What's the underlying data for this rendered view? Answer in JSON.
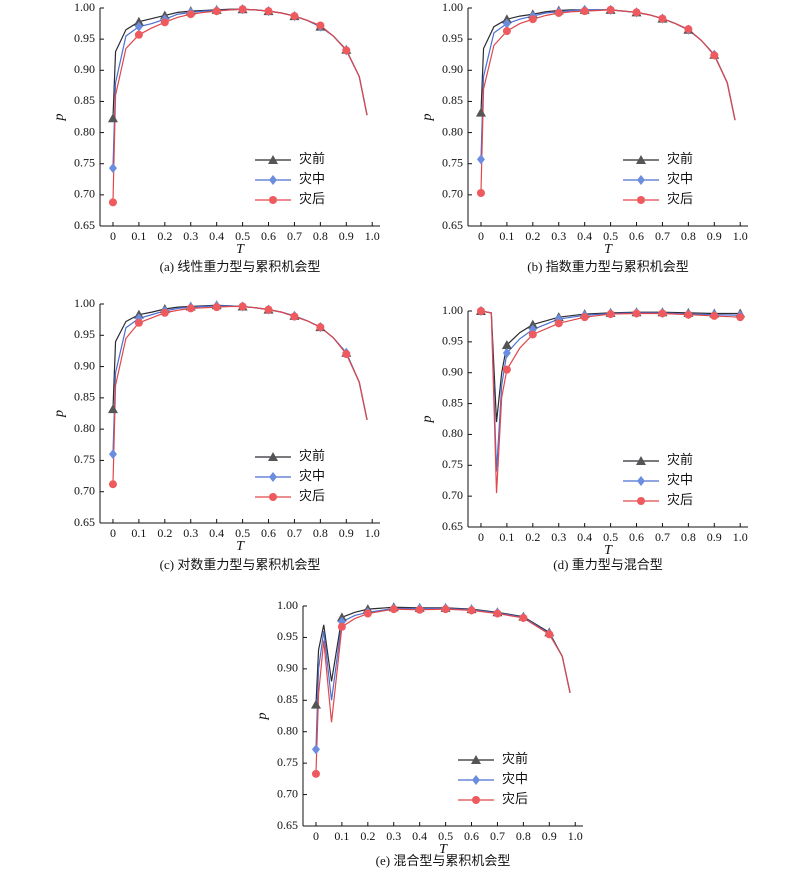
{
  "chart_data": [
    {
      "type": "line",
      "title": "(a) 线性重力型与累积机会型",
      "x_label": "T",
      "y_label": "p",
      "legend": "lower right",
      "xlim": [
        -0.05,
        1.03
      ],
      "ylim": [
        0.65,
        1.0
      ],
      "xticks": [
        0,
        0.1,
        0.2,
        0.3,
        0.4,
        0.5,
        0.6,
        0.7,
        0.8,
        0.9,
        {
          "value": 1,
          "label": "1.0"
        }
      ],
      "yticks": [
        0.65,
        {
          "value": 0.7,
          "label": "0.70"
        },
        0.75,
        {
          "value": 0.8,
          "label": "0.80"
        },
        0.85,
        {
          "value": 0.9,
          "label": "0.90"
        },
        0.95,
        {
          "value": 1,
          "label": "1.00"
        }
      ],
      "x": [
        0,
        0.01,
        0.05,
        0.1,
        0.15,
        0.2,
        0.25,
        0.3,
        0.35,
        0.4,
        0.45,
        0.5,
        0.55,
        0.6,
        0.65,
        0.7,
        0.75,
        0.8,
        0.85,
        0.9,
        0.95,
        0.98
      ],
      "series": [
        {
          "name": "灾前",
          "color": "#2b2b33",
          "values": [
            0.823,
            0.93,
            0.965,
            0.978,
            0.983,
            0.988,
            0.993,
            0.995,
            0.996,
            0.997,
            0.998,
            0.998,
            0.997,
            0.995,
            0.992,
            0.987,
            0.98,
            0.97,
            0.955,
            0.933,
            0.89,
            0.828
          ]
        },
        {
          "name": "灾中",
          "color": "#4a6fd0",
          "values": [
            0.743,
            0.88,
            0.955,
            0.97,
            0.975,
            0.982,
            0.99,
            0.993,
            0.995,
            0.996,
            0.997,
            0.998,
            0.997,
            0.995,
            0.992,
            0.987,
            0.98,
            0.97,
            0.955,
            0.932,
            0.89,
            0.828
          ]
        },
        {
          "name": "灾后",
          "color": "#e0474c",
          "values": [
            0.688,
            0.86,
            0.935,
            0.957,
            0.968,
            0.977,
            0.985,
            0.99,
            0.993,
            0.995,
            0.997,
            0.998,
            0.997,
            0.995,
            0.992,
            0.987,
            0.98,
            0.972,
            0.955,
            0.932,
            0.89,
            0.828
          ]
        }
      ]
    },
    {
      "type": "line",
      "title": "(b) 指数重力型与累积机会型",
      "x_label": "T",
      "y_label": "p",
      "legend": "lower right",
      "xlim": [
        -0.05,
        1.03
      ],
      "ylim": [
        0.65,
        1.0
      ],
      "xticks": [
        0,
        0.1,
        0.2,
        0.3,
        0.4,
        0.5,
        0.6,
        0.7,
        0.8,
        0.9,
        {
          "value": 1,
          "label": "1.0"
        }
      ],
      "yticks": [
        0.65,
        {
          "value": 0.7,
          "label": "0.70"
        },
        0.75,
        {
          "value": 0.8,
          "label": "0.80"
        },
        0.85,
        {
          "value": 0.9,
          "label": "0.90"
        },
        0.95,
        {
          "value": 1,
          "label": "1.00"
        }
      ],
      "x": [
        0,
        0.01,
        0.05,
        0.1,
        0.15,
        0.2,
        0.25,
        0.3,
        0.35,
        0.4,
        0.45,
        0.5,
        0.55,
        0.6,
        0.65,
        0.7,
        0.75,
        0.8,
        0.85,
        0.9,
        0.95,
        0.98
      ],
      "series": [
        {
          "name": "灾前",
          "color": "#2b2b33",
          "values": [
            0.832,
            0.935,
            0.97,
            0.982,
            0.987,
            0.99,
            0.994,
            0.996,
            0.997,
            0.997,
            0.997,
            0.997,
            0.995,
            0.993,
            0.989,
            0.983,
            0.975,
            0.965,
            0.948,
            0.925,
            0.88,
            0.82
          ]
        },
        {
          "name": "灾中",
          "color": "#4a6fd0",
          "values": [
            0.757,
            0.89,
            0.96,
            0.975,
            0.982,
            0.987,
            0.992,
            0.994,
            0.996,
            0.997,
            0.997,
            0.997,
            0.995,
            0.993,
            0.989,
            0.983,
            0.975,
            0.965,
            0.948,
            0.925,
            0.88,
            0.82
          ]
        },
        {
          "name": "灾后",
          "color": "#e0474c",
          "values": [
            0.703,
            0.87,
            0.94,
            0.963,
            0.975,
            0.982,
            0.988,
            0.992,
            0.994,
            0.995,
            0.996,
            0.997,
            0.995,
            0.993,
            0.989,
            0.983,
            0.975,
            0.966,
            0.948,
            0.924,
            0.88,
            0.82
          ]
        }
      ]
    },
    {
      "type": "line",
      "title": "(c) 对数重力型与累积机会型",
      "x_label": "T",
      "y_label": "p",
      "legend": "lower right",
      "xlim": [
        -0.05,
        1.03
      ],
      "ylim": [
        0.65,
        1.0
      ],
      "xticks": [
        0,
        0.1,
        0.2,
        0.3,
        0.4,
        0.5,
        0.6,
        0.7,
        0.8,
        0.9,
        {
          "value": 1,
          "label": "1.0"
        }
      ],
      "yticks": [
        0.65,
        {
          "value": 0.7,
          "label": "0.70"
        },
        0.75,
        {
          "value": 0.8,
          "label": "0.80"
        },
        0.85,
        {
          "value": 0.9,
          "label": "0.90"
        },
        0.95,
        {
          "value": 1,
          "label": "1.00"
        }
      ],
      "x": [
        0,
        0.01,
        0.05,
        0.1,
        0.15,
        0.2,
        0.25,
        0.3,
        0.35,
        0.4,
        0.45,
        0.5,
        0.55,
        0.6,
        0.65,
        0.7,
        0.75,
        0.8,
        0.85,
        0.9,
        0.95,
        0.98
      ],
      "series": [
        {
          "name": "灾前",
          "color": "#2b2b33",
          "values": [
            0.832,
            0.94,
            0.972,
            0.983,
            0.987,
            0.992,
            0.995,
            0.996,
            0.997,
            0.998,
            0.997,
            0.996,
            0.994,
            0.991,
            0.987,
            0.981,
            0.973,
            0.963,
            0.946,
            0.922,
            0.875,
            0.815
          ]
        },
        {
          "name": "灾中",
          "color": "#4a6fd0",
          "values": [
            0.76,
            0.89,
            0.962,
            0.977,
            0.983,
            0.989,
            0.993,
            0.995,
            0.996,
            0.997,
            0.997,
            0.996,
            0.994,
            0.991,
            0.987,
            0.981,
            0.973,
            0.963,
            0.946,
            0.922,
            0.875,
            0.815
          ]
        },
        {
          "name": "灾后",
          "color": "#e0474c",
          "values": [
            0.712,
            0.87,
            0.945,
            0.97,
            0.978,
            0.986,
            0.99,
            0.993,
            0.994,
            0.995,
            0.996,
            0.996,
            0.994,
            0.991,
            0.987,
            0.98,
            0.973,
            0.963,
            0.946,
            0.92,
            0.875,
            0.815
          ]
        }
      ]
    },
    {
      "type": "line",
      "title": "(d) 重力型与混合型",
      "x_label": "T",
      "y_label": "p",
      "legend": "lower right",
      "xlim": [
        -0.05,
        1.03
      ],
      "ylim": [
        0.65,
        1.0
      ],
      "xticks": [
        0,
        0.1,
        0.2,
        0.3,
        0.4,
        0.5,
        0.6,
        0.7,
        0.8,
        0.9,
        {
          "value": 1,
          "label": "1.0"
        }
      ],
      "yticks": [
        0.65,
        {
          "value": 0.7,
          "label": "0.70"
        },
        0.75,
        {
          "value": 0.8,
          "label": "0.80"
        },
        0.85,
        {
          "value": 0.9,
          "label": "0.90"
        },
        0.95,
        {
          "value": 1,
          "label": "1.00"
        }
      ],
      "x": [
        0,
        0.04,
        0.06,
        0.08,
        0.1,
        0.15,
        0.2,
        0.3,
        0.4,
        0.5,
        0.6,
        0.7,
        0.8,
        0.9,
        1
      ],
      "series": [
        {
          "name": "灾前",
          "color": "#2b2b33",
          "values": [
            1.0,
            0.997,
            0.82,
            0.9,
            0.945,
            0.965,
            0.978,
            0.99,
            0.995,
            0.997,
            0.998,
            0.998,
            0.997,
            0.996,
            0.996
          ]
        },
        {
          "name": "灾中",
          "color": "#4a6fd0",
          "values": [
            1.0,
            0.997,
            0.74,
            0.88,
            0.932,
            0.955,
            0.97,
            0.987,
            0.993,
            0.996,
            0.997,
            0.997,
            0.995,
            0.994,
            0.993
          ]
        },
        {
          "name": "灾后",
          "color": "#e0474c",
          "values": [
            1.0,
            0.997,
            0.705,
            0.86,
            0.905,
            0.94,
            0.962,
            0.98,
            0.99,
            0.995,
            0.996,
            0.996,
            0.994,
            0.992,
            0.99
          ]
        }
      ]
    },
    {
      "type": "line",
      "title": "(e) 混合型与累积机会型",
      "x_label": "T",
      "y_label": "p",
      "legend": "lower right",
      "xlim": [
        -0.05,
        1.03
      ],
      "ylim": [
        0.65,
        1.0
      ],
      "xticks": [
        0,
        0.1,
        0.2,
        0.3,
        0.4,
        0.5,
        0.6,
        0.7,
        0.8,
        0.9,
        {
          "value": 1,
          "label": "1.0"
        }
      ],
      "yticks": [
        0.65,
        {
          "value": 0.7,
          "label": "0.70"
        },
        0.75,
        {
          "value": 0.8,
          "label": "0.80"
        },
        0.85,
        {
          "value": 0.9,
          "label": "0.90"
        },
        0.95,
        {
          "value": 1,
          "label": "1.00"
        }
      ],
      "x": [
        0,
        0.01,
        0.03,
        0.06,
        0.1,
        0.15,
        0.2,
        0.3,
        0.4,
        0.5,
        0.6,
        0.7,
        0.8,
        0.9,
        0.95,
        0.98
      ],
      "series": [
        {
          "name": "灾前",
          "color": "#2b2b33",
          "values": [
            0.843,
            0.93,
            0.97,
            0.88,
            0.982,
            0.99,
            0.995,
            0.998,
            0.997,
            0.997,
            0.995,
            0.99,
            0.983,
            0.958,
            0.92,
            0.862
          ]
        },
        {
          "name": "灾中",
          "color": "#4a6fd0",
          "values": [
            0.772,
            0.9,
            0.96,
            0.85,
            0.975,
            0.985,
            0.99,
            0.996,
            0.996,
            0.996,
            0.994,
            0.989,
            0.982,
            0.956,
            0.92,
            0.862
          ]
        },
        {
          "name": "灾后",
          "color": "#e0474c",
          "values": [
            0.733,
            0.86,
            0.945,
            0.815,
            0.967,
            0.98,
            0.988,
            0.995,
            0.994,
            0.995,
            0.993,
            0.988,
            0.981,
            0.955,
            0.92,
            0.862
          ]
        }
      ]
    }
  ]
}
